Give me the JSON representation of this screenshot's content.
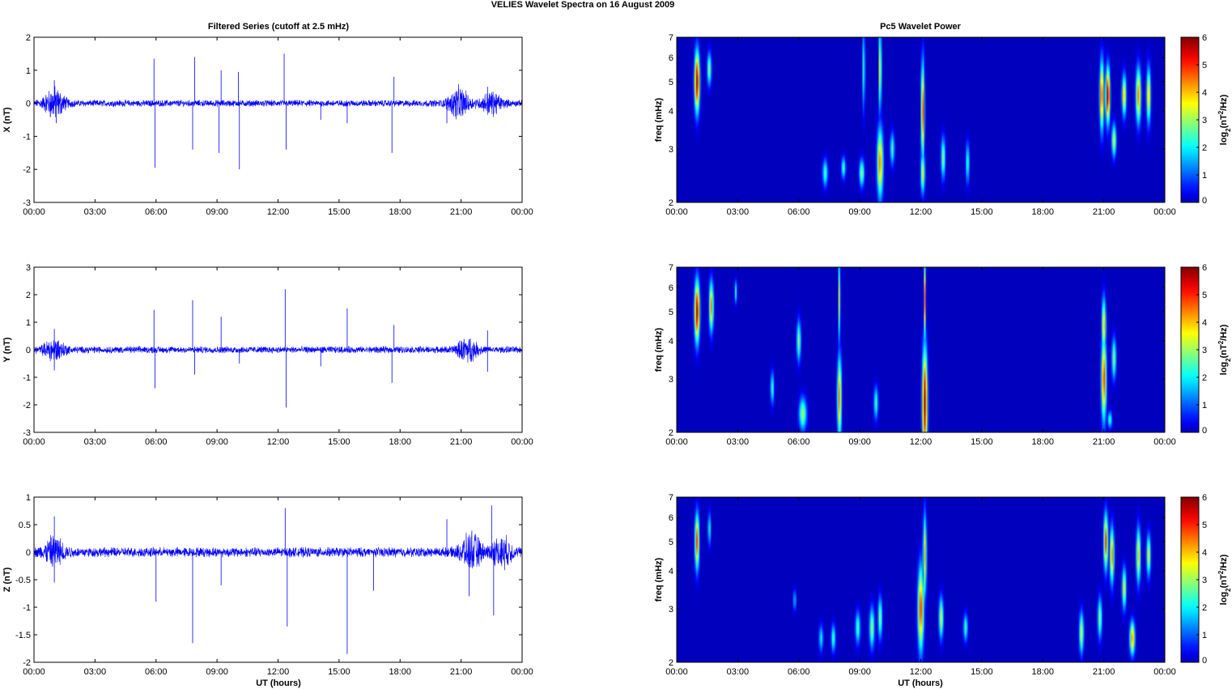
{
  "figure": {
    "title": "VELIES Wavelet Spectra on 16 August    2009",
    "left_title": "Filtered Series (cutoff at 2.5 mHz)",
    "right_title": "Pc5 Wavelet Power",
    "xlabel": "UT (hours)",
    "colorbar_label_base": "log",
    "colorbar_label_sub": "2",
    "colorbar_label_rest": "(nT",
    "colorbar_label_sup": "2",
    "colorbar_label_end": "/Hz)"
  },
  "colors": {
    "trace": "#0000ff",
    "background": "#ffffff",
    "axes": "#000000"
  },
  "chart_data": [
    {
      "type": "line",
      "component": "X",
      "ylabel": "X (nT)",
      "xlim": [
        0,
        24
      ],
      "ylim": [
        -3,
        2
      ],
      "yticks": [
        -3,
        -2,
        -1,
        0,
        1,
        2
      ],
      "xticks": [
        "00:00",
        "03:00",
        "06:00",
        "09:00",
        "12:00",
        "15:00",
        "18:00",
        "21:00",
        "00:00"
      ],
      "noise_amplitude": 0.08,
      "bursts": [
        [
          1.0,
          0.35
        ],
        [
          20.9,
          0.35
        ],
        [
          22.5,
          0.25
        ]
      ],
      "spikes": [
        [
          1.0,
          0.7
        ],
        [
          1.1,
          -0.6
        ],
        [
          5.9,
          1.35
        ],
        [
          5.95,
          -1.95
        ],
        [
          7.8,
          -1.4
        ],
        [
          7.9,
          1.4
        ],
        [
          9.1,
          -1.5
        ],
        [
          9.2,
          1.0
        ],
        [
          10.1,
          -2.0
        ],
        [
          10.05,
          0.95
        ],
        [
          12.3,
          1.5
        ],
        [
          12.4,
          -1.4
        ],
        [
          14.1,
          -0.5
        ],
        [
          15.4,
          -0.6
        ],
        [
          17.6,
          -1.5
        ],
        [
          17.7,
          0.8
        ],
        [
          20.3,
          -0.6
        ],
        [
          22.3,
          0.5
        ]
      ]
    },
    {
      "type": "line",
      "component": "Y",
      "ylabel": "Y (nT)",
      "xlim": [
        0,
        24
      ],
      "ylim": [
        -3,
        3
      ],
      "yticks": [
        -3,
        -2,
        -1,
        0,
        1,
        2,
        3
      ],
      "xticks": [
        "00:00",
        "03:00",
        "06:00",
        "09:00",
        "12:00",
        "15:00",
        "18:00",
        "21:00",
        "00:00"
      ],
      "noise_amplitude": 0.1,
      "bursts": [
        [
          1.0,
          0.3
        ],
        [
          21.3,
          0.3
        ]
      ],
      "spikes": [
        [
          1.0,
          0.75
        ],
        [
          1.0,
          -0.75
        ],
        [
          5.9,
          1.45
        ],
        [
          5.95,
          -1.4
        ],
        [
          7.8,
          1.8
        ],
        [
          7.9,
          -0.9
        ],
        [
          9.2,
          1.2
        ],
        [
          10.1,
          -0.5
        ],
        [
          12.35,
          2.2
        ],
        [
          12.4,
          -2.1
        ],
        [
          14.1,
          -0.6
        ],
        [
          15.4,
          1.5
        ],
        [
          17.6,
          -1.2
        ],
        [
          17.7,
          0.9
        ],
        [
          22.3,
          -0.8
        ],
        [
          22.3,
          0.7
        ]
      ]
    },
    {
      "type": "line",
      "component": "Z",
      "ylabel": "Z (nT)",
      "xlim": [
        0,
        24
      ],
      "ylim": [
        -2,
        1
      ],
      "yticks": [
        -2,
        -1.5,
        -1,
        -0.5,
        0,
        0.5,
        1
      ],
      "xticks": [
        "00:00",
        "03:00",
        "06:00",
        "09:00",
        "12:00",
        "15:00",
        "18:00",
        "21:00",
        "00:00"
      ],
      "noise_amplitude": 0.07,
      "bursts": [
        [
          1.0,
          0.2
        ],
        [
          21.5,
          0.25
        ],
        [
          23.0,
          0.2
        ]
      ],
      "spikes": [
        [
          1.0,
          0.65
        ],
        [
          1.0,
          -0.55
        ],
        [
          6.0,
          -0.9
        ],
        [
          7.8,
          -1.65
        ],
        [
          9.2,
          -0.6
        ],
        [
          12.35,
          0.8
        ],
        [
          12.45,
          -1.35
        ],
        [
          15.4,
          -1.85
        ],
        [
          16.7,
          -0.7
        ],
        [
          20.3,
          0.6
        ],
        [
          21.4,
          -0.8
        ],
        [
          22.5,
          0.85
        ],
        [
          22.6,
          -1.15
        ]
      ]
    },
    {
      "type": "heatmap",
      "component": "X",
      "ylabel": "freq (mHz)",
      "yscale": "log",
      "xlim": [
        0,
        24
      ],
      "ylim": [
        2,
        7
      ],
      "yticks": [
        2,
        3,
        4,
        5,
        6,
        7
      ],
      "xticks": [
        "00:00",
        "03:00",
        "06:00",
        "09:00",
        "12:00",
        "15:00",
        "18:00",
        "21:00",
        "00:00"
      ],
      "colorbar": {
        "range": [
          0,
          6
        ],
        "ticks": [
          0,
          1,
          2,
          3,
          4,
          5,
          6
        ],
        "colormap": "jet"
      },
      "blobs": [
        [
          1.0,
          5.0,
          0.12,
          0.22,
          6.0
        ],
        [
          1.6,
          5.5,
          0.1,
          0.12,
          3.0
        ],
        [
          7.3,
          2.5,
          0.12,
          0.1,
          2.5
        ],
        [
          8.2,
          2.6,
          0.1,
          0.08,
          2.5
        ],
        [
          9.1,
          2.5,
          0.12,
          0.1,
          3.0
        ],
        [
          9.2,
          5.5,
          0.06,
          0.3,
          2.5
        ],
        [
          10.0,
          2.7,
          0.14,
          0.25,
          4.5
        ],
        [
          10.0,
          5.5,
          0.06,
          0.3,
          4.0
        ],
        [
          10.6,
          3.0,
          0.1,
          0.12,
          2.5
        ],
        [
          12.1,
          4.0,
          0.08,
          0.35,
          5.0
        ],
        [
          12.1,
          2.5,
          0.1,
          0.15,
          3.5
        ],
        [
          13.1,
          2.8,
          0.1,
          0.15,
          3.0
        ],
        [
          14.3,
          2.7,
          0.08,
          0.15,
          2.5
        ],
        [
          20.9,
          4.5,
          0.1,
          0.25,
          5.0
        ],
        [
          21.2,
          4.5,
          0.1,
          0.2,
          6.0
        ],
        [
          21.5,
          3.2,
          0.1,
          0.12,
          3.5
        ],
        [
          22.0,
          4.5,
          0.1,
          0.15,
          4.0
        ],
        [
          22.7,
          4.5,
          0.12,
          0.2,
          4.5
        ],
        [
          23.2,
          4.5,
          0.1,
          0.2,
          4.0
        ]
      ]
    },
    {
      "type": "heatmap",
      "component": "Y",
      "ylabel": "freq (mHz)",
      "yscale": "log",
      "xlim": [
        0,
        24
      ],
      "ylim": [
        2,
        7
      ],
      "yticks": [
        2,
        3,
        4,
        5,
        6,
        7
      ],
      "xticks": [
        "00:00",
        "03:00",
        "06:00",
        "09:00",
        "12:00",
        "15:00",
        "18:00",
        "21:00",
        "00:00"
      ],
      "colorbar": {
        "range": [
          0,
          6
        ],
        "ticks": [
          0,
          1,
          2,
          3,
          4,
          5,
          6
        ],
        "colormap": "jet"
      },
      "blobs": [
        [
          1.0,
          5.0,
          0.12,
          0.22,
          6.0
        ],
        [
          1.7,
          5.2,
          0.1,
          0.18,
          4.5
        ],
        [
          2.9,
          5.8,
          0.06,
          0.08,
          2.5
        ],
        [
          4.7,
          2.8,
          0.08,
          0.12,
          2.5
        ],
        [
          6.2,
          2.3,
          0.18,
          0.12,
          3.0
        ],
        [
          6.0,
          4.0,
          0.1,
          0.15,
          3.0
        ],
        [
          8.0,
          2.6,
          0.1,
          0.3,
          4.5
        ],
        [
          8.0,
          5.5,
          0.05,
          0.3,
          3.5
        ],
        [
          9.8,
          2.5,
          0.1,
          0.12,
          2.5
        ],
        [
          12.2,
          2.5,
          0.12,
          0.4,
          6.0
        ],
        [
          12.2,
          5.5,
          0.05,
          0.3,
          4.5
        ],
        [
          21.0,
          3.0,
          0.12,
          0.3,
          5.0
        ],
        [
          21.0,
          4.5,
          0.1,
          0.2,
          4.0
        ],
        [
          21.5,
          3.5,
          0.1,
          0.15,
          3.0
        ],
        [
          21.3,
          2.2,
          0.1,
          0.06,
          2.5
        ]
      ]
    },
    {
      "type": "heatmap",
      "component": "Z",
      "ylabel": "freq (mHz)",
      "yscale": "log",
      "xlim": [
        0,
        24
      ],
      "ylim": [
        2,
        7
      ],
      "yticks": [
        2,
        3,
        4,
        5,
        6,
        7
      ],
      "xticks": [
        "00:00",
        "03:00",
        "06:00",
        "09:00",
        "12:00",
        "15:00",
        "18:00",
        "21:00",
        "00:00"
      ],
      "colorbar": {
        "range": [
          0,
          6
        ],
        "ticks": [
          0,
          1,
          2,
          3,
          4,
          5,
          6
        ],
        "colormap": "jet"
      },
      "blobs": [
        [
          1.0,
          5.0,
          0.1,
          0.2,
          5.0
        ],
        [
          1.6,
          5.5,
          0.06,
          0.12,
          2.5
        ],
        [
          5.8,
          3.2,
          0.06,
          0.08,
          2.0
        ],
        [
          7.1,
          2.4,
          0.1,
          0.1,
          2.0
        ],
        [
          7.7,
          2.4,
          0.1,
          0.1,
          2.5
        ],
        [
          8.9,
          2.6,
          0.12,
          0.12,
          2.5
        ],
        [
          9.6,
          2.6,
          0.12,
          0.15,
          3.0
        ],
        [
          10.0,
          2.8,
          0.1,
          0.15,
          3.0
        ],
        [
          12.0,
          3.0,
          0.14,
          0.3,
          5.0
        ],
        [
          12.2,
          4.5,
          0.08,
          0.3,
          4.0
        ],
        [
          13.0,
          2.8,
          0.1,
          0.15,
          3.5
        ],
        [
          14.2,
          2.6,
          0.1,
          0.1,
          2.5
        ],
        [
          19.9,
          2.5,
          0.1,
          0.15,
          3.5
        ],
        [
          20.8,
          2.8,
          0.1,
          0.15,
          3.0
        ],
        [
          21.1,
          5.0,
          0.1,
          0.2,
          5.0
        ],
        [
          21.4,
          4.5,
          0.1,
          0.2,
          4.5
        ],
        [
          22.0,
          3.5,
          0.1,
          0.15,
          3.5
        ],
        [
          22.4,
          2.4,
          0.12,
          0.12,
          4.5
        ],
        [
          22.7,
          4.5,
          0.1,
          0.2,
          4.0
        ],
        [
          23.2,
          4.5,
          0.1,
          0.15,
          3.5
        ]
      ]
    }
  ]
}
